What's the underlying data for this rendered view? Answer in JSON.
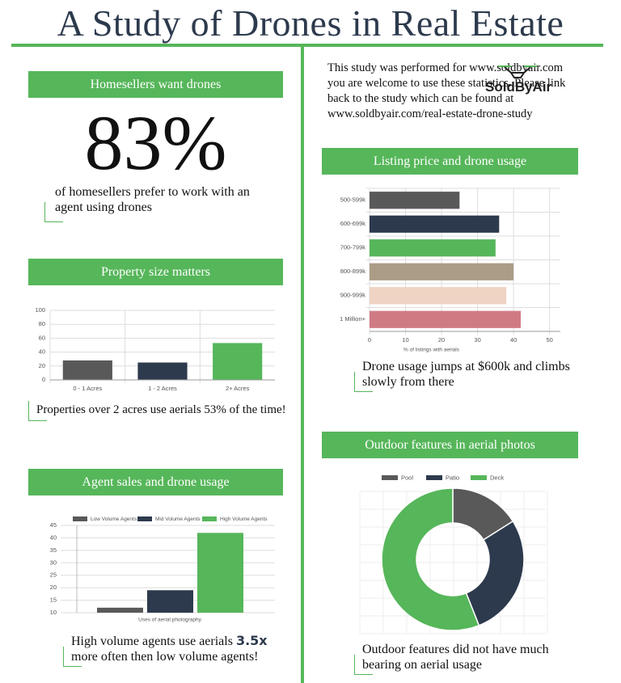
{
  "title": "A Study of Drones in Real Estate",
  "intro": "This study was performed for www.soldbyair.com you are welcome to use these statistics. Please link back to the study which can be found at www.soldbyair.com/real-estate-drone-study",
  "logo": "SoldByAir",
  "headline": {
    "header": "Homesellers want drones",
    "stat": "83%",
    "text": "of homesellers prefer to work with an agent using drones"
  },
  "chart_data": [
    {
      "type": "bar",
      "title": "Property size matters",
      "caption": "Properties over 2 acres use aerials 53% of the time!",
      "categories": [
        "0 - 1 Acres",
        "1 - 2 Acres",
        "2+ Acres"
      ],
      "values": [
        28,
        25,
        53
      ],
      "colors": [
        "#595959",
        "#2d3a4d",
        "#56b65a"
      ],
      "ylim": [
        0,
        100
      ],
      "yticks": [
        0,
        20,
        40,
        60,
        80,
        100
      ],
      "grid": true
    },
    {
      "type": "grouped-bar",
      "title": "Agent sales and drone usage",
      "caption": [
        "High volume agents use aerials",
        "3.5x",
        "more often then low volume agents!"
      ],
      "xlabel": "Uses of aerial photography",
      "series": [
        {
          "name": "Low Volume Agents",
          "color": "#595959",
          "values": [
            12
          ]
        },
        {
          "name": "Mid Volume Agents",
          "color": "#2d3a4d",
          "values": [
            19
          ]
        },
        {
          "name": "High Volume Agents",
          "color": "#56b65a",
          "values": [
            42
          ]
        }
      ],
      "ylim": [
        10,
        45
      ],
      "yticks": [
        10,
        15,
        20,
        25,
        30,
        35,
        40,
        45
      ],
      "grid": true,
      "legend": "top"
    },
    {
      "type": "barh",
      "title": "Listing price and drone usage",
      "caption": "Drone usage jumps at $600k and climbs slowly from there",
      "xlabel": "% of listings with aerials",
      "categories": [
        "500-599k",
        "600-699k",
        "700-799k",
        "800-899k",
        "900-999k",
        "1 Million+"
      ],
      "values": [
        25,
        36,
        35,
        40,
        38,
        42
      ],
      "colors": [
        "#595959",
        "#2d3a4d",
        "#56b65a",
        "#ab9c86",
        "#efd3c3",
        "#cf7b83"
      ],
      "xlim": [
        0,
        53
      ],
      "xticks": [
        0,
        10,
        20,
        30,
        40,
        50
      ],
      "grid": true
    },
    {
      "type": "donut",
      "title": "Outdoor features in aerial photos",
      "caption": "Outdoor features did not have much bearing on aerial usage",
      "categories": [
        "Pool",
        "Patio",
        "Deck"
      ],
      "values": [
        16,
        28,
        56
      ],
      "colors": [
        "#595959",
        "#2d3a4d",
        "#56b65a"
      ],
      "legend": "top"
    }
  ]
}
